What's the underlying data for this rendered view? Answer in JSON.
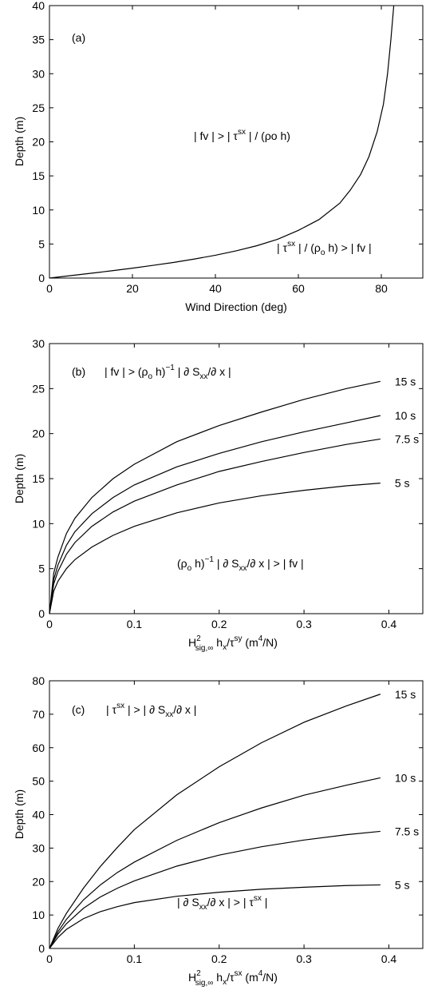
{
  "colors": {
    "background": "#ffffff",
    "ink": "#000000"
  },
  "chart_data": [
    {
      "type": "line",
      "panel_label": "(a)",
      "xlabel": "Wind Direction (deg)",
      "ylabel": "Depth (m)",
      "xlim": [
        0,
        90
      ],
      "ylim": [
        0,
        40
      ],
      "xticks": [
        0,
        20,
        40,
        60,
        80
      ],
      "yticks": [
        0,
        5,
        10,
        15,
        20,
        25,
        30,
        35,
        40
      ],
      "grid": false,
      "annotations": {
        "upper": "| fv | > | τsx | / (ρo h)",
        "lower": "| τsx | / (ρo h) > | fv |"
      },
      "series": [
        {
          "x": [
            0,
            5,
            10,
            15,
            20,
            25,
            30,
            35,
            40,
            45,
            50,
            55,
            60,
            65,
            70,
            72.5,
            75,
            77,
            79,
            80.5,
            81.5,
            82.3,
            83
          ],
          "values": [
            0,
            0.35,
            0.7,
            1.07,
            1.45,
            1.87,
            2.3,
            2.8,
            3.35,
            4.0,
            4.75,
            5.7,
            7.0,
            8.6,
            11.0,
            12.9,
            15.2,
            17.8,
            21.5,
            25.5,
            30.0,
            35.0,
            40.0
          ]
        }
      ]
    },
    {
      "type": "line",
      "panel_label": "(b)",
      "xlabel": "H2sig,∞ hx/τsy (m4/N)",
      "ylabel": "Depth (m)",
      "xlim": [
        0,
        0.44
      ],
      "ylim": [
        0,
        30
      ],
      "xticks": [
        0,
        0.1,
        0.2,
        0.3,
        0.4
      ],
      "yticks": [
        0,
        5,
        10,
        15,
        20,
        25,
        30
      ],
      "grid": false,
      "annotations": {
        "upper": "| fv | > (ρo h)−1 | ∂ Sxx/∂ x |",
        "lower": "(ρo h)−1 | ∂ Sxx/∂ x | > | fv |"
      },
      "series": [
        {
          "name": "15 s",
          "x": [
            0,
            0.005,
            0.01,
            0.02,
            0.03,
            0.05,
            0.075,
            0.1,
            0.15,
            0.2,
            0.25,
            0.3,
            0.35,
            0.39
          ],
          "values": [
            0,
            4.5,
            6.3,
            8.9,
            10.6,
            12.9,
            15.0,
            16.6,
            19.1,
            20.9,
            22.4,
            23.8,
            25.0,
            25.8
          ]
        },
        {
          "name": "10 s",
          "x": [
            0,
            0.005,
            0.01,
            0.02,
            0.03,
            0.05,
            0.075,
            0.1,
            0.15,
            0.2,
            0.25,
            0.3,
            0.35,
            0.39
          ],
          "values": [
            0,
            3.8,
            5.4,
            7.6,
            9.1,
            11.1,
            12.9,
            14.3,
            16.3,
            17.8,
            19.1,
            20.2,
            21.2,
            22.0
          ]
        },
        {
          "name": "7.5 s",
          "x": [
            0,
            0.005,
            0.01,
            0.02,
            0.03,
            0.05,
            0.075,
            0.1,
            0.15,
            0.2,
            0.25,
            0.3,
            0.35,
            0.39
          ],
          "values": [
            0,
            3.3,
            4.7,
            6.6,
            7.9,
            9.7,
            11.3,
            12.5,
            14.3,
            15.8,
            16.9,
            17.9,
            18.8,
            19.4
          ]
        },
        {
          "name": "5 s",
          "x": [
            0,
            0.005,
            0.01,
            0.02,
            0.03,
            0.05,
            0.075,
            0.1,
            0.15,
            0.2,
            0.25,
            0.3,
            0.35,
            0.39
          ],
          "values": [
            0,
            2.5,
            3.6,
            5.0,
            6.0,
            7.4,
            8.7,
            9.7,
            11.2,
            12.3,
            13.1,
            13.7,
            14.2,
            14.5
          ]
        }
      ]
    },
    {
      "type": "line",
      "panel_label": "(c)",
      "xlabel": "H2sig,∞ hx/τsx (m4/N)",
      "ylabel": "Depth (m)",
      "xlim": [
        0,
        0.44
      ],
      "ylim": [
        0,
        80
      ],
      "xticks": [
        0,
        0.1,
        0.2,
        0.3,
        0.4
      ],
      "yticks": [
        0,
        10,
        20,
        30,
        40,
        50,
        60,
        70,
        80
      ],
      "grid": false,
      "annotations": {
        "upper": "| τsx | > | ∂ Sxx/∂ x |",
        "lower": "| ∂ Sxx/∂ x | > | τsx |"
      },
      "series": [
        {
          "name": "15 s",
          "x": [
            0,
            0.01,
            0.02,
            0.04,
            0.06,
            0.08,
            0.1,
            0.15,
            0.2,
            0.25,
            0.3,
            0.35,
            0.39
          ],
          "values": [
            0,
            6.0,
            10.5,
            18.0,
            24.5,
            30.2,
            35.5,
            45.9,
            54.3,
            61.5,
            67.6,
            72.5,
            76.0
          ]
        },
        {
          "name": "10 s",
          "x": [
            0,
            0.01,
            0.02,
            0.04,
            0.06,
            0.08,
            0.1,
            0.15,
            0.2,
            0.25,
            0.3,
            0.35,
            0.39
          ],
          "values": [
            0,
            5.0,
            8.7,
            14.5,
            19.0,
            22.7,
            25.8,
            32.3,
            37.6,
            42.0,
            45.8,
            48.8,
            51.0
          ]
        },
        {
          "name": "7.5 s",
          "x": [
            0,
            0.01,
            0.02,
            0.04,
            0.06,
            0.08,
            0.1,
            0.15,
            0.2,
            0.25,
            0.3,
            0.35,
            0.39
          ],
          "values": [
            0,
            4.3,
            7.4,
            12.0,
            15.4,
            18.0,
            20.2,
            24.6,
            27.9,
            30.4,
            32.4,
            34.0,
            35.0
          ]
        },
        {
          "name": "5 s",
          "x": [
            0,
            0.01,
            0.02,
            0.04,
            0.06,
            0.08,
            0.1,
            0.15,
            0.2,
            0.25,
            0.3,
            0.35,
            0.39
          ],
          "values": [
            0,
            3.3,
            5.7,
            8.9,
            11.0,
            12.5,
            13.7,
            15.6,
            16.8,
            17.7,
            18.3,
            18.8,
            19.0
          ]
        }
      ]
    }
  ]
}
